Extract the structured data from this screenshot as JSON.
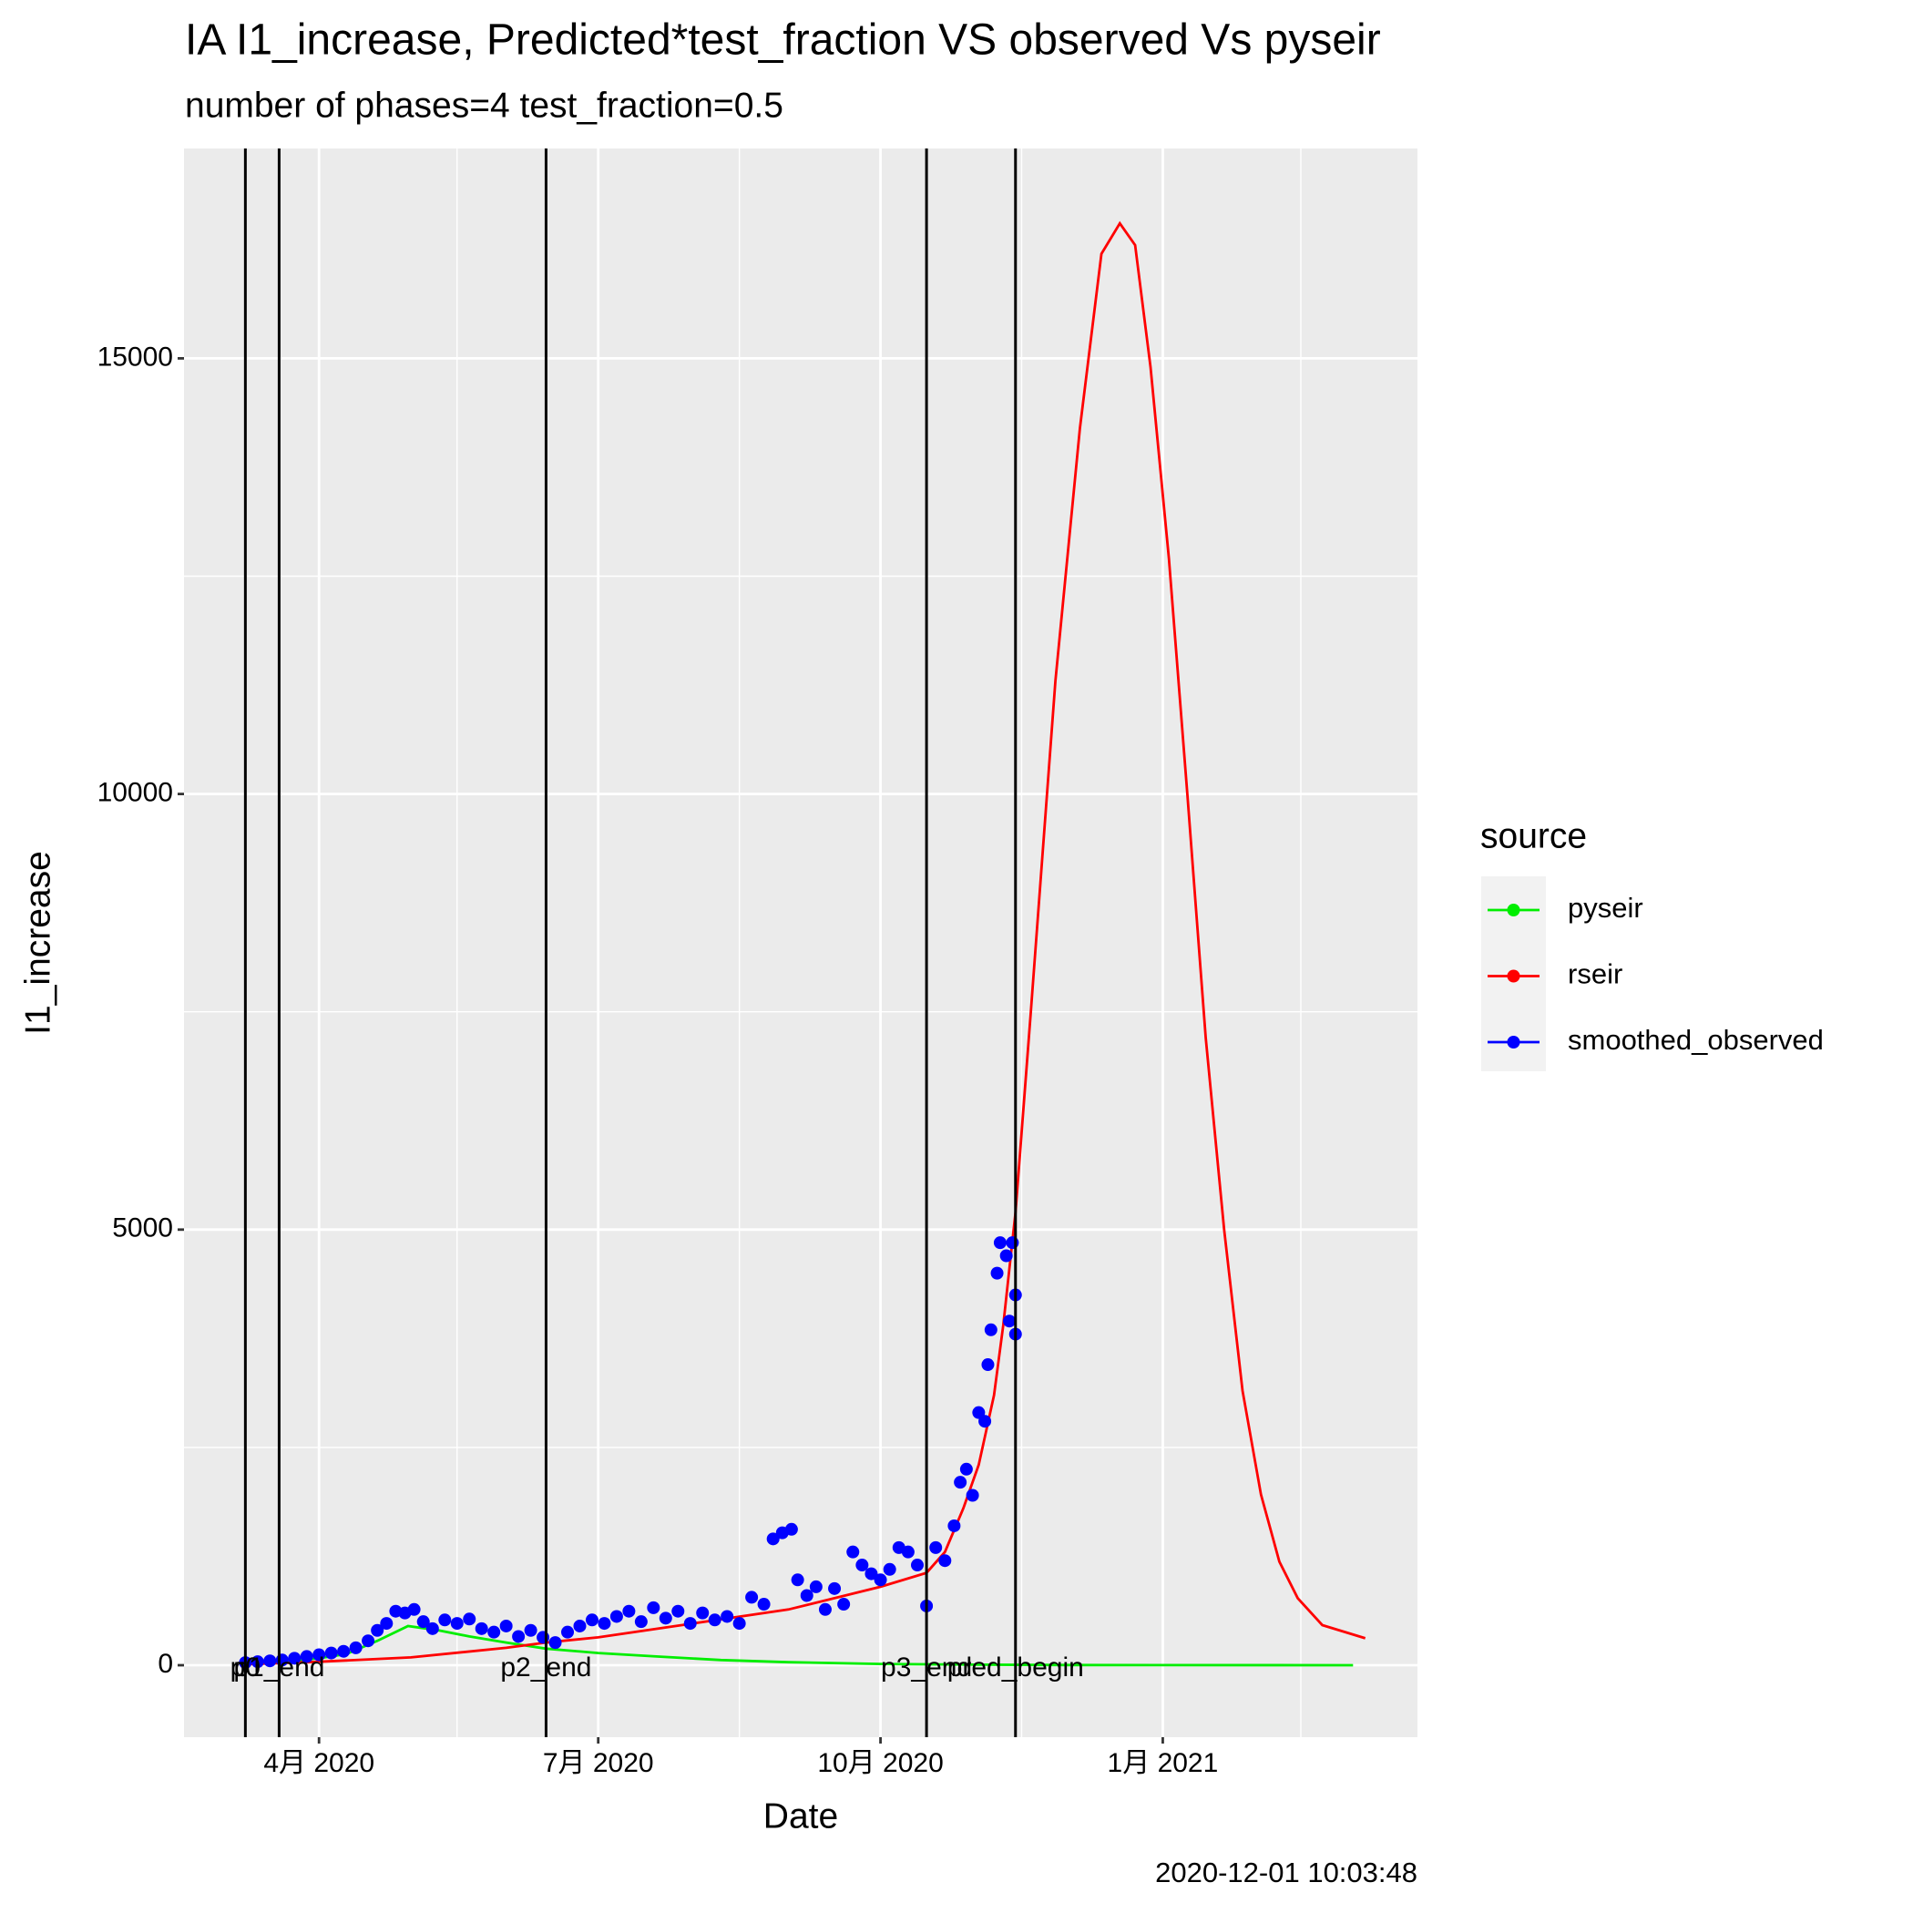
{
  "chart_data": {
    "type": "line",
    "title": "IA I1_increase, Predicted*test_fraction VS observed Vs pyseir",
    "subtitle": "number of phases=4   test_fraction=0.5",
    "x_label": "Date",
    "y_label": "I1_increase",
    "caption": "2020-12-01 10:03:48",
    "legend_title": "source",
    "legend_position": "right",
    "grid": true,
    "xlim": [
      "2020-02-17",
      "2021-03-25"
    ],
    "xticks": [
      {
        "value": "2020-04-01",
        "label": "4月 2020"
      },
      {
        "value": "2020-07-01",
        "label": "7月 2020"
      },
      {
        "value": "2020-10-01",
        "label": "10月 2020"
      },
      {
        "value": "2021-01-01",
        "label": "1月 2021"
      }
    ],
    "x_minor_gridlines": [
      "2020-05-16",
      "2020-08-16",
      "2020-11-16",
      "2021-02-15"
    ],
    "ylim": [
      -826,
      17409
    ],
    "yticks": [
      0,
      5000,
      10000,
      15000
    ],
    "y_minor_gridlines": [
      2500,
      7500,
      12500
    ],
    "vlines": [
      {
        "x": "2020-03-08",
        "label": "p0"
      },
      {
        "x": "2020-03-19",
        "label": "p1_end"
      },
      {
        "x": "2020-06-14",
        "label": "p2_end"
      },
      {
        "x": "2020-10-16",
        "label": "p3_end"
      },
      {
        "x": "2020-11-14",
        "label": "pred_begin"
      }
    ],
    "series": [
      {
        "name": "pyseir",
        "color": "#00ee00",
        "mode": "line",
        "x": [
          "2020-03-07",
          "2020-03-20",
          "2020-04-01",
          "2020-04-10",
          "2020-04-20",
          "2020-04-30",
          "2020-05-10",
          "2020-05-20",
          "2020-06-01",
          "2020-06-14",
          "2020-07-01",
          "2020-07-20",
          "2020-08-10",
          "2020-09-01",
          "2020-10-01",
          "2020-11-01",
          "2020-12-01",
          "2021-01-01",
          "2021-03-04"
        ],
        "values": [
          20,
          40,
          80,
          130,
          280,
          450,
          400,
          330,
          260,
          190,
          140,
          100,
          60,
          35,
          15,
          6,
          2,
          1,
          0
        ]
      },
      {
        "name": "rseir",
        "color": "#ff0000",
        "mode": "line",
        "x": [
          "2020-03-08",
          "2020-04-01",
          "2020-05-01",
          "2020-06-01",
          "2020-06-14",
          "2020-07-01",
          "2020-08-01",
          "2020-09-01",
          "2020-10-01",
          "2020-10-16",
          "2020-10-22",
          "2020-10-28",
          "2020-11-02",
          "2020-11-07",
          "2020-11-10",
          "2020-11-14",
          "2020-11-19",
          "2020-11-27",
          "2020-12-05",
          "2020-12-12",
          "2020-12-18",
          "2020-12-23",
          "2020-12-28",
          "2021-01-03",
          "2021-01-09",
          "2021-01-15",
          "2021-01-21",
          "2021-01-27",
          "2021-02-02",
          "2021-02-08",
          "2021-02-14",
          "2021-02-22",
          "2021-03-08"
        ],
        "values": [
          10,
          40,
          90,
          200,
          260,
          320,
          480,
          640,
          900,
          1060,
          1300,
          1800,
          2300,
          3100,
          3900,
          5200,
          7500,
          11300,
          14200,
          16200,
          16550,
          16300,
          14900,
          12700,
          10000,
          7200,
          5000,
          3150,
          1960,
          1190,
          770,
          460,
          310
        ]
      },
      {
        "name": "smoothed_observed",
        "color": "#0000ff",
        "mode": "points",
        "x": [
          "2020-03-08",
          "2020-03-12",
          "2020-03-16",
          "2020-03-20",
          "2020-03-24",
          "2020-03-28",
          "2020-04-01",
          "2020-04-05",
          "2020-04-09",
          "2020-04-13",
          "2020-04-17",
          "2020-04-20",
          "2020-04-23",
          "2020-04-26",
          "2020-04-29",
          "2020-05-02",
          "2020-05-05",
          "2020-05-08",
          "2020-05-12",
          "2020-05-16",
          "2020-05-20",
          "2020-05-24",
          "2020-05-28",
          "2020-06-01",
          "2020-06-05",
          "2020-06-09",
          "2020-06-13",
          "2020-06-17",
          "2020-06-21",
          "2020-06-25",
          "2020-06-29",
          "2020-07-03",
          "2020-07-07",
          "2020-07-11",
          "2020-07-15",
          "2020-07-19",
          "2020-07-23",
          "2020-07-27",
          "2020-07-31",
          "2020-08-04",
          "2020-08-08",
          "2020-08-12",
          "2020-08-16",
          "2020-08-20",
          "2020-08-24",
          "2020-08-27",
          "2020-08-30",
          "2020-09-02",
          "2020-09-04",
          "2020-09-07",
          "2020-09-10",
          "2020-09-13",
          "2020-09-16",
          "2020-09-19",
          "2020-09-22",
          "2020-09-25",
          "2020-09-28",
          "2020-10-01",
          "2020-10-04",
          "2020-10-07",
          "2020-10-10",
          "2020-10-13",
          "2020-10-16",
          "2020-10-19",
          "2020-10-22",
          "2020-10-25",
          "2020-10-27",
          "2020-10-29",
          "2020-10-31",
          "2020-11-02",
          "2020-11-04",
          "2020-11-05",
          "2020-11-06",
          "2020-11-08",
          "2020-11-09",
          "2020-11-11",
          "2020-11-12",
          "2020-11-13",
          "2020-11-14",
          "2020-11-14"
        ],
        "values": [
          30,
          40,
          50,
          60,
          80,
          100,
          120,
          140,
          160,
          200,
          280,
          400,
          480,
          620,
          600,
          640,
          500,
          420,
          520,
          480,
          530,
          420,
          380,
          450,
          330,
          400,
          320,
          260,
          380,
          450,
          520,
          480,
          560,
          620,
          500,
          660,
          540,
          620,
          480,
          600,
          520,
          560,
          480,
          780,
          700,
          1450,
          1520,
          1560,
          980,
          800,
          900,
          640,
          880,
          700,
          1300,
          1150,
          1050,
          980,
          1100,
          1350,
          1300,
          1150,
          680,
          1350,
          1200,
          1600,
          2100,
          2250,
          1950,
          2900,
          2800,
          3450,
          3850,
          4500,
          4850,
          4700,
          3950,
          4850,
          3800,
          4250
        ]
      }
    ]
  }
}
